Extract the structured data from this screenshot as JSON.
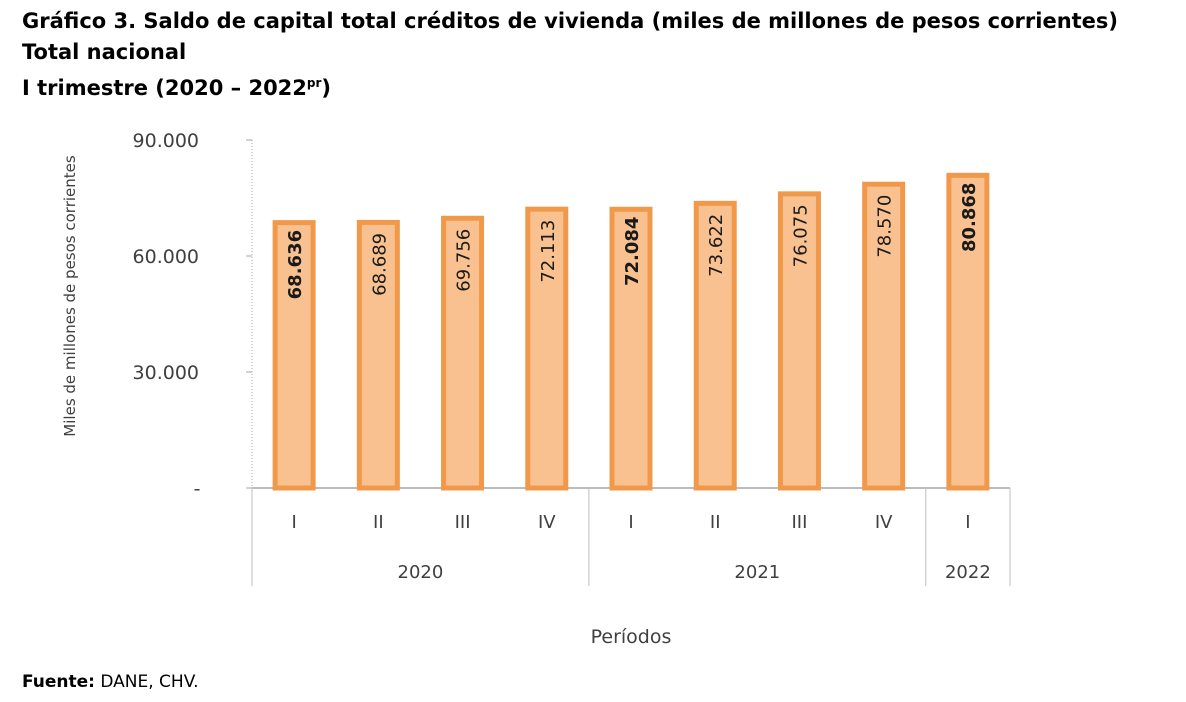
{
  "title": {
    "line1": "Gráfico 3.  Saldo de capital total créditos de vivienda (miles de millones de pesos corrientes)",
    "line2": "Total nacional",
    "line3_prefix": "I trimestre (2020 – 2022",
    "line3_sup": "pr",
    "line3_suffix": ")"
  },
  "source": {
    "label": "Fuente:",
    "text": " DANE, CHV."
  },
  "chart_data": {
    "type": "bar",
    "ylabel": "Miles de millones de pesos corrientes",
    "xlabel": "Períodos",
    "ylim": [
      0,
      90000
    ],
    "yticks": [
      {
        "value": 0,
        "label": "-"
      },
      {
        "value": 30000,
        "label": "30.000"
      },
      {
        "value": 60000,
        "label": "60.000"
      },
      {
        "value": 90000,
        "label": "90.000"
      }
    ],
    "categories": [
      "I",
      "II",
      "III",
      "IV",
      "I",
      "II",
      "III",
      "IV",
      "I"
    ],
    "groups": [
      {
        "label": "2020",
        "count": 4
      },
      {
        "label": "2021",
        "count": 4
      },
      {
        "label": "2022",
        "count": 1
      }
    ],
    "values": [
      68636,
      68689,
      69756,
      72113,
      72084,
      73622,
      76075,
      78570,
      80868
    ],
    "data_labels": [
      "68.636",
      "68.689",
      "69.756",
      "72.113",
      "72.084",
      "73.622",
      "76.075",
      "78.570",
      "80.868"
    ],
    "bold_labels": [
      true,
      false,
      false,
      false,
      true,
      false,
      false,
      false,
      true
    ],
    "colors": {
      "bar_fill": "#f9c18f",
      "bar_edge": "#f0994a"
    },
    "grid": false,
    "legend": "none"
  }
}
